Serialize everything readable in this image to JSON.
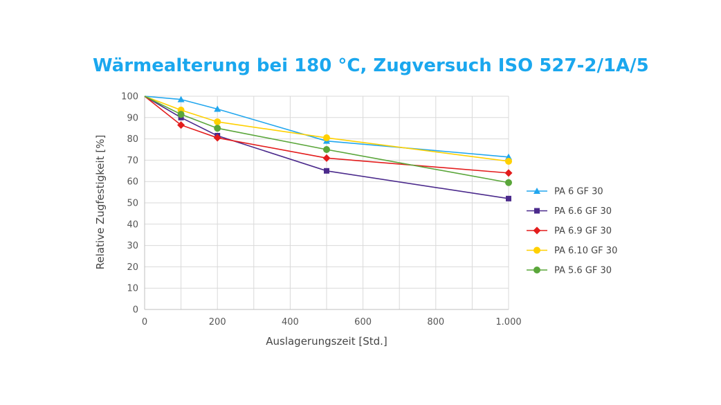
{
  "chart_data": {
    "type": "line",
    "title": "Wärmealterung bei 180 °C, Zugversuch ISO 527-2/1A/5",
    "xlabel": "Auslagerungszeit [Std.]",
    "ylabel": "Relative Zugfestigkeit [%]",
    "xlim": [
      0,
      1000
    ],
    "ylim": [
      0,
      100
    ],
    "x_ticks": [
      0,
      200,
      400,
      600,
      800,
      1000
    ],
    "x_tick_labels": [
      "0",
      "200",
      "400",
      "600",
      "800",
      "1.000"
    ],
    "y_ticks": [
      0,
      10,
      20,
      30,
      40,
      50,
      60,
      70,
      80,
      90,
      100
    ],
    "y_tick_labels": [
      "0",
      "10",
      "20",
      "30",
      "40",
      "50",
      "60",
      "70",
      "80",
      "90",
      "100"
    ],
    "grid": true,
    "legend_position": "right",
    "series": [
      {
        "name": "PA 6 GF 30",
        "color": "#21a6ee",
        "marker": "triangle",
        "x": [
          0,
          100,
          200,
          500,
          1000
        ],
        "y": [
          100,
          98.5,
          94,
          79,
          71.5
        ]
      },
      {
        "name": "PA 6.6 GF 30",
        "color": "#4b2a8c",
        "marker": "square",
        "x": [
          0,
          100,
          200,
          500,
          1000
        ],
        "y": [
          100,
          90,
          81.5,
          65,
          52
        ]
      },
      {
        "name": "PA 6.9 GF 30",
        "color": "#e31c1c",
        "marker": "diamond",
        "x": [
          0,
          100,
          200,
          500,
          1000
        ],
        "y": [
          100,
          86.5,
          80.5,
          71,
          64
        ]
      },
      {
        "name": "PA 6.10 GF 30",
        "color": "#ffd000",
        "marker": "circle",
        "x": [
          0,
          100,
          200,
          500,
          1000
        ],
        "y": [
          100,
          93.5,
          88,
          80.5,
          69.5
        ]
      },
      {
        "name": "PA 5.6 GF 30",
        "color": "#5aa63a",
        "marker": "circle",
        "x": [
          0,
          100,
          200,
          500,
          1000
        ],
        "y": [
          100,
          91.5,
          85,
          75,
          59.5
        ]
      }
    ]
  }
}
